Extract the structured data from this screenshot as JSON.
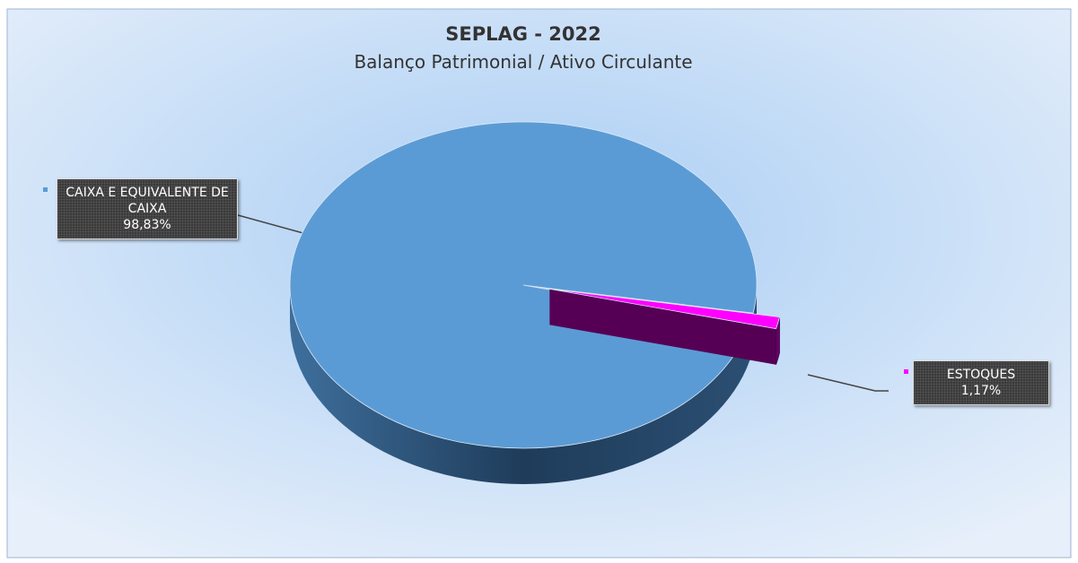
{
  "chart_data": {
    "type": "pie",
    "title": "SEPLAG - 2022",
    "subtitle": "Balanço Patrimonial / Ativo Circulante",
    "categories": [
      "CAIXA E EQUIVALENTE DE CAIXA",
      "ESTOQUES"
    ],
    "values": [
      98.83,
      1.17
    ],
    "value_labels": [
      "98,83%",
      "1,17%"
    ],
    "colors": [
      "#5b9bd5",
      "#ff00ff"
    ]
  }
}
